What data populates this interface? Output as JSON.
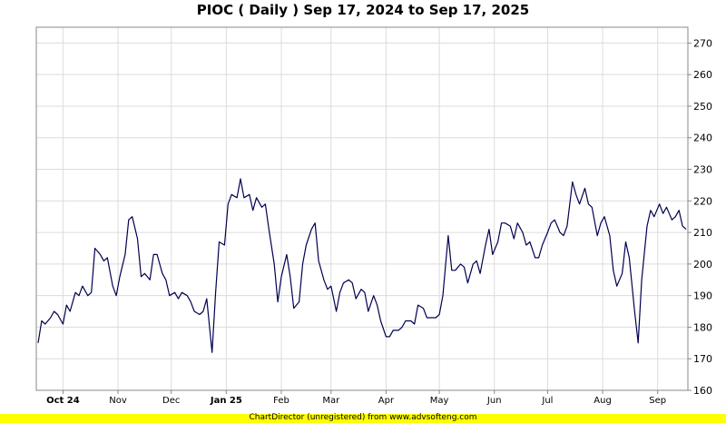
{
  "chart_data": {
    "type": "line",
    "title": "PIOC ( Daily ) Sep 17, 2024 to Sep 17, 2025",
    "xlabel": "",
    "ylabel": "",
    "ylim": [
      160,
      275
    ],
    "y_ticks": [
      160,
      170,
      180,
      190,
      200,
      210,
      220,
      230,
      240,
      250,
      260,
      270
    ],
    "x_tick_labels": [
      {
        "label": "Oct 24",
        "date": "2024-10-01",
        "bold": true
      },
      {
        "label": "Nov",
        "date": "2024-11-01",
        "bold": false
      },
      {
        "label": "Dec",
        "date": "2024-12-01",
        "bold": false
      },
      {
        "label": "Jan 25",
        "date": "2025-01-01",
        "bold": true
      },
      {
        "label": "Feb",
        "date": "2025-02-01",
        "bold": false
      },
      {
        "label": "Mar",
        "date": "2025-03-01",
        "bold": false
      },
      {
        "label": "Apr",
        "date": "2025-04-01",
        "bold": false
      },
      {
        "label": "May",
        "date": "2025-05-01",
        "bold": false
      },
      {
        "label": "Jun",
        "date": "2025-06-01",
        "bold": false
      },
      {
        "label": "Jul",
        "date": "2025-07-01",
        "bold": false
      },
      {
        "label": "Aug",
        "date": "2025-08-01",
        "bold": false
      },
      {
        "label": "Sep",
        "date": "2025-09-01",
        "bold": false
      }
    ],
    "grid": true,
    "line_color": "#000050",
    "series": [
      {
        "x": [
          "2024-09-17",
          "2024-09-19",
          "2024-09-21",
          "2024-09-24",
          "2024-09-26",
          "2024-09-28",
          "2024-10-01",
          "2024-10-03",
          "2024-10-05",
          "2024-10-08",
          "2024-10-10",
          "2024-10-12",
          "2024-10-15",
          "2024-10-17",
          "2024-10-19",
          "2024-10-22",
          "2024-10-24",
          "2024-10-26",
          "2024-10-29",
          "2024-10-31",
          "2024-11-02",
          "2024-11-05",
          "2024-11-07",
          "2024-11-09",
          "2024-11-12",
          "2024-11-14",
          "2024-11-16",
          "2024-11-19",
          "2024-11-21",
          "2024-11-23",
          "2024-11-26",
          "2024-11-28",
          "2024-11-30",
          "2024-12-03",
          "2024-12-05",
          "2024-12-07",
          "2024-12-10",
          "2024-12-12",
          "2024-12-14",
          "2024-12-17",
          "2024-12-19",
          "2024-12-21",
          "2024-12-24",
          "2024-12-26",
          "2024-12-28",
          "2024-12-31",
          "2025-01-02",
          "2025-01-04",
          "2025-01-07",
          "2025-01-09",
          "2025-01-11",
          "2025-01-14",
          "2025-01-16",
          "2025-01-18",
          "2025-01-21",
          "2025-01-23",
          "2025-01-25",
          "2025-01-28",
          "2025-01-30",
          "2025-02-01",
          "2025-02-04",
          "2025-02-06",
          "2025-02-08",
          "2025-02-11",
          "2025-02-13",
          "2025-02-15",
          "2025-02-18",
          "2025-02-20",
          "2025-02-22",
          "2025-02-25",
          "2025-02-27",
          "2025-03-01",
          "2025-03-04",
          "2025-03-06",
          "2025-03-08",
          "2025-03-11",
          "2025-03-13",
          "2025-03-15",
          "2025-03-18",
          "2025-03-20",
          "2025-03-22",
          "2025-03-25",
          "2025-03-27",
          "2025-03-29",
          "2025-04-01",
          "2025-04-03",
          "2025-04-05",
          "2025-04-08",
          "2025-04-10",
          "2025-04-12",
          "2025-04-15",
          "2025-04-17",
          "2025-04-19",
          "2025-04-22",
          "2025-04-24",
          "2025-04-26",
          "2025-04-29",
          "2025-05-01",
          "2025-05-03",
          "2025-05-06",
          "2025-05-08",
          "2025-05-10",
          "2025-05-13",
          "2025-05-15",
          "2025-05-17",
          "2025-05-20",
          "2025-05-22",
          "2025-05-24",
          "2025-05-27",
          "2025-05-29",
          "2025-05-31",
          "2025-06-03",
          "2025-06-05",
          "2025-06-07",
          "2025-06-10",
          "2025-06-12",
          "2025-06-14",
          "2025-06-17",
          "2025-06-19",
          "2025-06-21",
          "2025-06-24",
          "2025-06-26",
          "2025-06-28",
          "2025-07-01",
          "2025-07-03",
          "2025-07-05",
          "2025-07-08",
          "2025-07-10",
          "2025-07-12",
          "2025-07-15",
          "2025-07-17",
          "2025-07-19",
          "2025-07-22",
          "2025-07-24",
          "2025-07-26",
          "2025-07-29",
          "2025-07-31",
          "2025-08-02",
          "2025-08-05",
          "2025-08-07",
          "2025-08-09",
          "2025-08-12",
          "2025-08-14",
          "2025-08-16",
          "2025-08-19",
          "2025-08-21",
          "2025-08-23",
          "2025-08-26",
          "2025-08-28",
          "2025-08-30",
          "2025-09-02",
          "2025-09-04",
          "2025-09-06",
          "2025-09-09",
          "2025-09-11",
          "2025-09-13",
          "2025-09-15",
          "2025-09-17"
        ],
        "values": [
          175,
          182,
          181,
          183,
          185,
          184,
          181,
          187,
          185,
          191,
          190,
          193,
          190,
          191,
          205,
          203,
          201,
          202,
          193,
          190,
          196,
          203,
          214,
          215,
          208,
          196,
          197,
          195,
          203,
          203,
          197,
          195,
          190,
          191,
          189,
          191,
          190,
          188,
          185,
          184,
          185,
          189,
          172,
          191,
          207,
          206,
          219,
          222,
          221,
          227,
          221,
          222,
          217,
          221,
          218,
          219,
          211,
          200,
          188,
          196,
          203,
          196,
          186,
          188,
          200,
          206,
          211,
          213,
          201,
          195,
          192,
          193,
          185,
          191,
          194,
          195,
          194,
          189,
          192,
          191,
          185,
          190,
          187,
          182,
          177,
          177,
          179,
          179,
          180,
          182,
          182,
          181,
          187,
          186,
          183,
          183,
          183,
          184,
          190,
          209,
          198,
          198,
          200,
          199,
          194,
          200,
          201,
          197,
          206,
          211,
          203,
          207,
          213,
          213,
          212,
          208,
          213,
          210,
          206,
          207,
          202,
          202,
          206,
          210,
          213,
          214,
          210,
          209,
          212,
          226,
          222,
          219,
          224,
          219,
          218,
          209,
          213,
          215,
          209,
          198,
          193,
          197,
          207,
          202,
          185,
          175,
          195,
          212,
          217,
          215,
          219,
          216,
          218,
          214,
          215,
          217,
          212,
          211
        ]
      }
    ]
  },
  "footer": {
    "text": "ChartDirector (unregistered) from www.advsofteng.com",
    "bg_color": "#ffff00"
  }
}
